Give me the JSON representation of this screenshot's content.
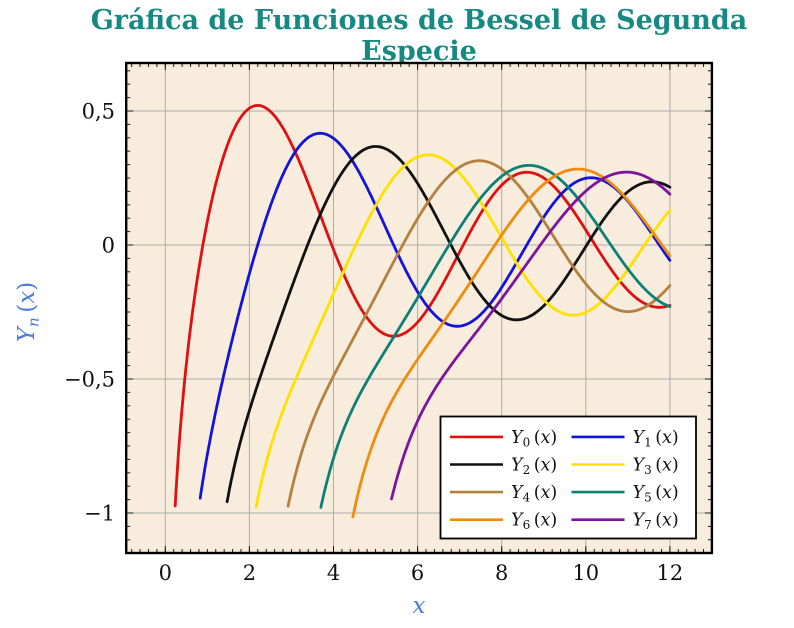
{
  "page": {
    "background": "#ffffff"
  },
  "chart_data": {
    "type": "line",
    "title": "Gráfica de Funciones de Bessel de Segunda Especie",
    "title_color": "#168a82",
    "function_family": "Bessel functions of the second kind Yn(x), orders n = 0 to 7",
    "xlabel": {
      "var": "x"
    },
    "ylabel": {
      "base": "Y",
      "sub": "n",
      "open": "(",
      "var": "x",
      "close": ")"
    },
    "axis_label_color": "#4a7ed8",
    "plot_bg": "#f8ecdd",
    "grid": "major",
    "grid_color": "#adadad",
    "tick_color": "#1a1a1a",
    "tick_label_color": "#111111",
    "frame_color": "#000000",
    "xlim": [
      -0.935,
      13.0
    ],
    "ylim": [
      -1.149,
      0.679
    ],
    "x_end": 12,
    "x_ticks": {
      "values": [
        0,
        2,
        4,
        6,
        8,
        10,
        12
      ],
      "labels": [
        "0",
        "2",
        "4",
        "6",
        "8",
        "10",
        "12"
      ]
    },
    "y_ticks": {
      "values": [
        0.5,
        0,
        -0.5,
        -1
      ],
      "labels": [
        "0,5",
        "0",
        "−0,5",
        "−1"
      ]
    },
    "x_minor_step": 0.2,
    "y_minor_step": 0.05,
    "legend": {
      "position": "bottom-right",
      "columns": 2,
      "bg": "#ffffff",
      "border": "#000000"
    },
    "series": [
      {
        "n": 0,
        "label": {
          "base": "Y",
          "sub": "0",
          "open": "(",
          "var": "x",
          "close": ")"
        },
        "color": "#e01010",
        "x_start": 0.235,
        "sample_x": [
          1,
          2,
          3,
          4,
          5,
          6,
          7,
          8,
          9,
          10,
          11,
          12
        ],
        "sample_y": [
          0.088,
          0.51,
          0.377,
          -0.017,
          -0.309,
          -0.288,
          -0.026,
          0.224,
          0.25,
          0.056,
          -0.169,
          -0.225
        ]
      },
      {
        "n": 1,
        "label": {
          "base": "Y",
          "sub": "1",
          "open": "(",
          "var": "x",
          "close": ")"
        },
        "color": "#1414d8",
        "x_start": 0.83,
        "sample_x": [
          1,
          2,
          3,
          4,
          5,
          6,
          7,
          8,
          9,
          10,
          11,
          12
        ],
        "sample_y": [
          -0.781,
          -0.107,
          0.325,
          0.398,
          0.148,
          -0.175,
          -0.303,
          -0.158,
          0.104,
          0.249,
          0.164,
          -0.057
        ]
      },
      {
        "n": 2,
        "label": {
          "base": "Y",
          "sub": "2",
          "open": "(",
          "var": "x",
          "close": ")"
        },
        "color": "#111111",
        "x_start": 1.47,
        "sample_x": [
          2,
          3,
          4,
          5,
          6,
          7,
          8,
          9,
          10,
          11,
          12
        ],
        "sample_y": [
          -0.617,
          -0.16,
          0.216,
          0.368,
          0.23,
          -0.061,
          -0.263,
          -0.227,
          -0.006,
          0.199,
          0.216
        ]
      },
      {
        "n": 3,
        "label": {
          "base": "Y",
          "sub": "3",
          "open": "(",
          "var": "x",
          "close": ")"
        },
        "color": "#ffe100",
        "x_start": 2.16,
        "sample_x": [
          3,
          4,
          5,
          6,
          7,
          8,
          9,
          10,
          11,
          12
        ],
        "sample_y": [
          -0.539,
          -0.182,
          0.146,
          0.328,
          0.268,
          0.027,
          -0.205,
          -0.251,
          -0.091,
          0.129
        ]
      },
      {
        "n": 4,
        "label": {
          "base": "Y",
          "sub": "4",
          "open": "(",
          "var": "x",
          "close": ")"
        },
        "color": "#b5803f",
        "x_start": 2.92,
        "sample_x": [
          3,
          4,
          5,
          6,
          7,
          8,
          9,
          10,
          11,
          12
        ],
        "sample_y": [
          -0.917,
          -0.489,
          -0.192,
          0.098,
          0.29,
          0.283,
          0.09,
          -0.145,
          -0.249,
          -0.151
        ]
      },
      {
        "n": 5,
        "label": {
          "base": "Y",
          "sub": "5",
          "open": "(",
          "var": "x",
          "close": ")"
        },
        "color": "#0c8076",
        "x_start": 3.7,
        "sample_x": [
          4,
          5,
          6,
          7,
          8,
          9,
          10,
          11,
          12
        ],
        "sample_y": [
          -0.796,
          -0.454,
          -0.197,
          0.064,
          0.256,
          0.285,
          0.135,
          -0.089,
          -0.23
        ]
      },
      {
        "n": 6,
        "label": {
          "base": "Y",
          "sub": "6",
          "open": "(",
          "var": "x",
          "close": ")"
        },
        "color": "#ef8b0d",
        "x_start": 4.46,
        "sample_x": [
          5,
          6,
          7,
          8,
          9,
          10,
          11,
          12
        ],
        "sample_y": [
          -0.715,
          -0.427,
          -0.199,
          0.038,
          0.227,
          0.28,
          0.167,
          -0.04
        ]
      },
      {
        "n": 7,
        "label": {
          "base": "Y",
          "sub": "7",
          "open": "(",
          "var": "x",
          "close": ")"
        },
        "color": "#7c149c",
        "x_start": 5.38,
        "sample_x": [
          6,
          7,
          8,
          9,
          10,
          11,
          12
        ],
        "sample_y": [
          -0.657,
          -0.405,
          -0.2,
          0.017,
          0.201,
          0.272,
          0.19
        ]
      }
    ]
  }
}
